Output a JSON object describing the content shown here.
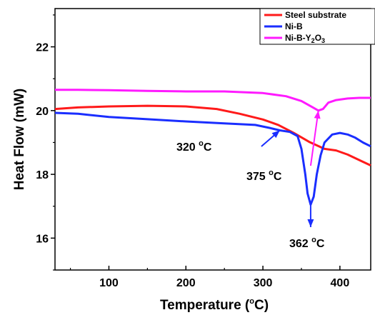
{
  "chart_data": {
    "type": "line",
    "xlabel": "Temperature (",
    "xlabel_unit_sup": "o",
    "xlabel_unit_rest": "C)",
    "ylabel": "Heat Flow (mW)",
    "xlim": [
      30,
      440
    ],
    "ylim": [
      15,
      23.2
    ],
    "x_ticks": [
      100,
      200,
      300,
      400
    ],
    "x_tick_labels": [
      "100",
      "200",
      "300",
      "400"
    ],
    "y_ticks": [
      16,
      18,
      20,
      22
    ],
    "y_tick_labels": [
      "16",
      "18",
      "20",
      "22"
    ],
    "grid": false,
    "legend_position": "top-right",
    "series": [
      {
        "name": "Steel substrate",
        "color": "#ff1a1a",
        "points": [
          [
            30,
            20.05
          ],
          [
            60,
            20.1
          ],
          [
            100,
            20.13
          ],
          [
            150,
            20.15
          ],
          [
            200,
            20.13
          ],
          [
            240,
            20.05
          ],
          [
            270,
            19.9
          ],
          [
            300,
            19.72
          ],
          [
            320,
            19.55
          ],
          [
            340,
            19.3
          ],
          [
            360,
            19.02
          ],
          [
            380,
            18.8
          ],
          [
            395,
            18.75
          ],
          [
            410,
            18.62
          ],
          [
            425,
            18.45
          ],
          [
            440,
            18.28
          ]
        ]
      },
      {
        "name": "Ni-B",
        "color": "#1a2eff",
        "points": [
          [
            30,
            19.93
          ],
          [
            60,
            19.9
          ],
          [
            100,
            19.8
          ],
          [
            150,
            19.73
          ],
          [
            200,
            19.66
          ],
          [
            250,
            19.6
          ],
          [
            290,
            19.55
          ],
          [
            310,
            19.45
          ],
          [
            322,
            19.38
          ],
          [
            335,
            19.33
          ],
          [
            345,
            19.2
          ],
          [
            350,
            18.8
          ],
          [
            355,
            18.0
          ],
          [
            358,
            17.4
          ],
          [
            362,
            17.05
          ],
          [
            366,
            17.3
          ],
          [
            370,
            18.0
          ],
          [
            375,
            18.6
          ],
          [
            380,
            19.0
          ],
          [
            390,
            19.25
          ],
          [
            400,
            19.3
          ],
          [
            410,
            19.25
          ],
          [
            420,
            19.15
          ],
          [
            430,
            19.0
          ],
          [
            440,
            18.88
          ]
        ]
      },
      {
        "name": "Ni-B-Y2O3",
        "name_main": "Ni-B-Y",
        "name_sub1": "2",
        "name_mid": "O",
        "name_sub2": "3",
        "color": "#ff1aff",
        "points": [
          [
            30,
            20.65
          ],
          [
            60,
            20.65
          ],
          [
            100,
            20.64
          ],
          [
            150,
            20.62
          ],
          [
            200,
            20.6
          ],
          [
            250,
            20.6
          ],
          [
            300,
            20.55
          ],
          [
            330,
            20.45
          ],
          [
            350,
            20.3
          ],
          [
            365,
            20.1
          ],
          [
            372,
            20.0
          ],
          [
            378,
            20.05
          ],
          [
            385,
            20.25
          ],
          [
            395,
            20.33
          ],
          [
            410,
            20.38
          ],
          [
            425,
            20.4
          ],
          [
            440,
            20.4
          ]
        ]
      }
    ],
    "annotations": [
      {
        "label_main": "320 ",
        "label_sup": "o",
        "label_rest": "C",
        "text_x": 247,
        "text_baseline": 211,
        "arrow_from": [
          298,
          205
        ],
        "arrow_to": [
          322,
          19.38
        ],
        "color": "#1a2eff"
      },
      {
        "label_main": "375 ",
        "label_sup": "o",
        "label_rest": "C",
        "text_x": 345,
        "text_baseline": 252,
        "arrow_from": [
          362,
          232
        ],
        "arrow_to": [
          372,
          20.0
        ],
        "color": "#ff1aff"
      },
      {
        "label_main": "362 ",
        "label_sup": "o",
        "label_rest": "C",
        "text_x": 405,
        "text_baseline": 346,
        "arrow_from": [
          362,
          17.05
        ],
        "arrow_to": [
          362,
          318
        ],
        "color": "#1a2eff"
      }
    ]
  }
}
